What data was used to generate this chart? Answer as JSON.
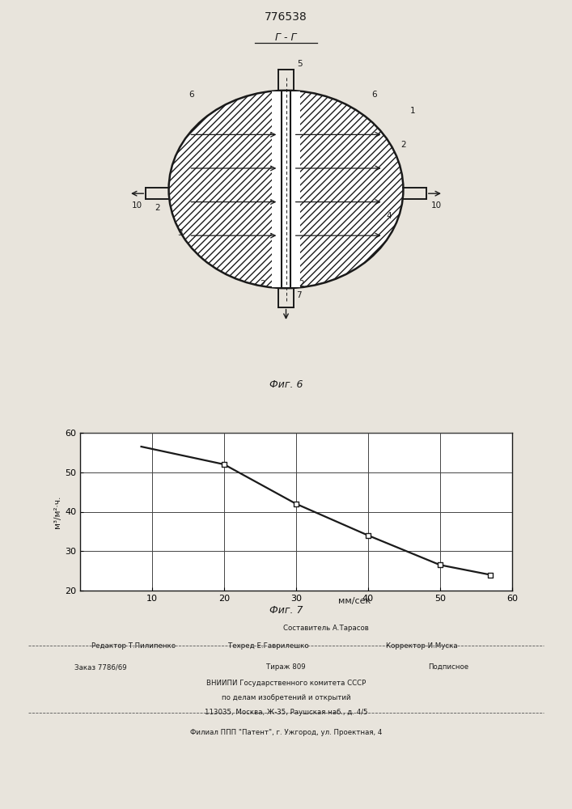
{
  "patent_number": "776538",
  "fig6_label": "Г - Г",
  "fig6_caption": "Фиг. 6",
  "fig7_caption": "Фиг. 7",
  "graph_x": [
    8.5,
    20,
    30,
    40,
    50,
    57
  ],
  "graph_y": [
    56.5,
    52,
    42,
    34,
    26.5,
    24
  ],
  "data_points_x": [
    20,
    30,
    40,
    50,
    57
  ],
  "data_points_y": [
    52,
    42,
    34,
    26.5,
    24
  ],
  "graph_xlim": [
    0,
    60
  ],
  "graph_ylim": [
    20,
    60
  ],
  "graph_xticks": [
    10,
    20,
    30,
    40,
    50,
    60
  ],
  "graph_yticks": [
    20,
    30,
    40,
    50,
    60
  ],
  "graph_xlabel": "мм/сек",
  "graph_ylabel": "м³/м²·ч.",
  "footer_line0": "Составитель А.Тарасов",
  "footer_line1a": "Редактор Т.Пилипенко",
  "footer_line1b": "Техред Е.Гаврилешко",
  "footer_line1c": "Корректор И.Муска",
  "footer_line2a": "Заказ 7786/69",
  "footer_line2b": "Тираж 809",
  "footer_line2c": "Подписное",
  "footer_line3": "ВНИИПИ Государственного комитета СССР",
  "footer_line4": "по делам изобретений и открытий",
  "footer_line5": "113035, Москва, Ж-35, Раушская наб., д. 4/5",
  "footer_line6": "Филиал ППП \"Патент\", г. Ужгород, ул. Проектная, 4",
  "bg_color": "#e8e4dc",
  "line_color": "#1a1a1a",
  "graph_bg": "#ffffff"
}
